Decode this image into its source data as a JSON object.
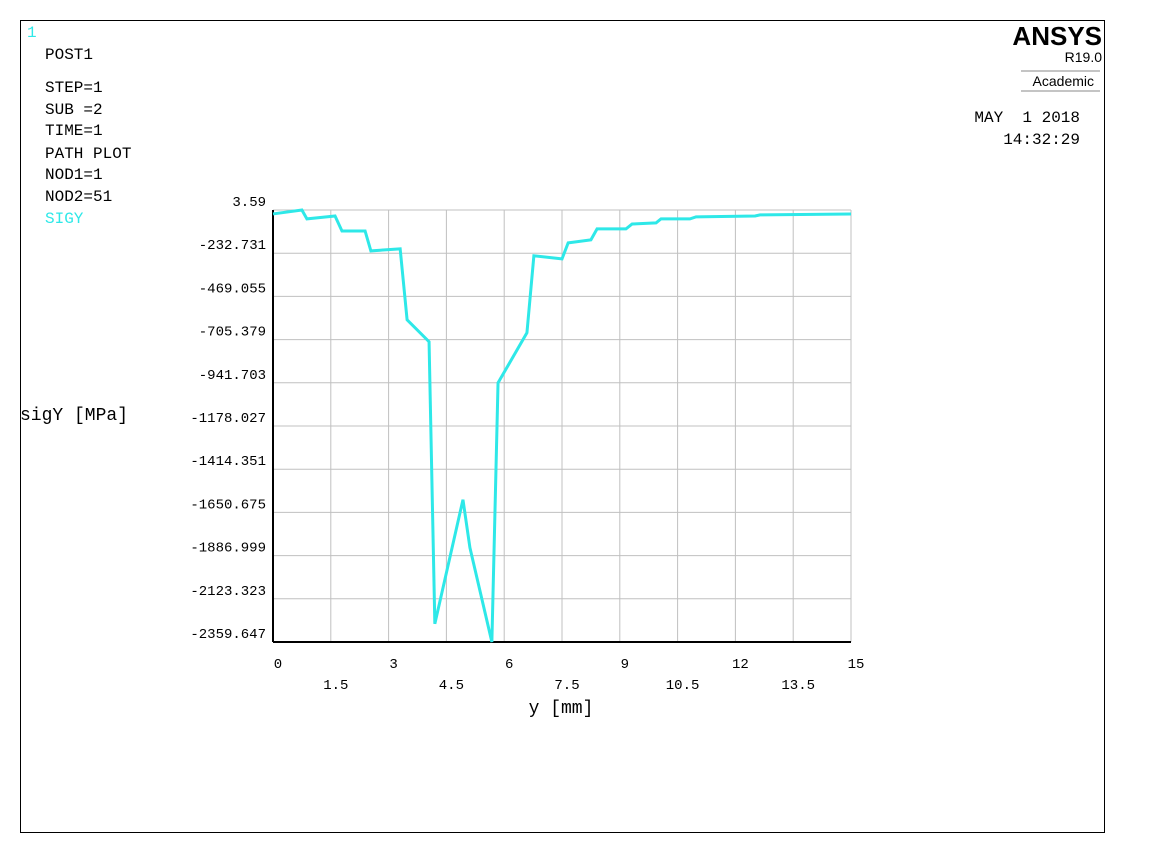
{
  "window_number": "1",
  "info": {
    "lines": [
      "POST1",
      "STEP=1",
      "SUB =2",
      "TIME=1",
      "PATH PLOT",
      "NOD1=1",
      "NOD2=51"
    ]
  },
  "brand": {
    "name": "ANSYS",
    "version": "R19.0",
    "license": "Academic"
  },
  "date": "MAY  1 2018",
  "time": "14:32:29",
  "chart_data": {
    "type": "line",
    "x_label": "y [mm]",
    "y_label": "sigY [MPa]",
    "x": [
      0,
      0.75,
      0.88,
      1.61,
      1.79,
      2.39,
      2.54,
      3.3,
      3.48,
      4.05,
      4.2,
      4.93,
      5.11,
      5.68,
      5.84,
      6.59,
      6.77,
      7.5,
      7.66,
      8.25,
      8.41,
      9.16,
      9.32,
      9.94,
      10.07,
      10.82,
      10.98,
      12.51,
      12.64,
      15
    ],
    "series": [
      {
        "name": "SIGY",
        "color": "#2ee8e8",
        "values": [
          -18,
          3.6,
          -45,
          -29,
          -111,
          -111,
          -220,
          -209,
          -597,
          -717,
          -2260,
          -1581,
          -1843,
          -2359.6,
          -942,
          -668,
          -247,
          -264,
          -176,
          -160,
          -100,
          -100,
          -73,
          -67,
          -45,
          -45,
          -34,
          -29,
          -23,
          -18
        ]
      }
    ],
    "xlim": [
      0,
      15
    ],
    "xticks": [
      0,
      1.5,
      3,
      4.5,
      6,
      7.5,
      9,
      10.5,
      12,
      13.5,
      15
    ],
    "ylim": [
      -2359.647,
      3.59
    ],
    "yticks": [
      3.59,
      -232.731,
      -469.055,
      -705.379,
      -941.703,
      -1178.027,
      -1414.351,
      -1650.675,
      -1886.999,
      -2123.323,
      -2359.647
    ],
    "grid": true,
    "grid_color": "#c0c0c0"
  }
}
